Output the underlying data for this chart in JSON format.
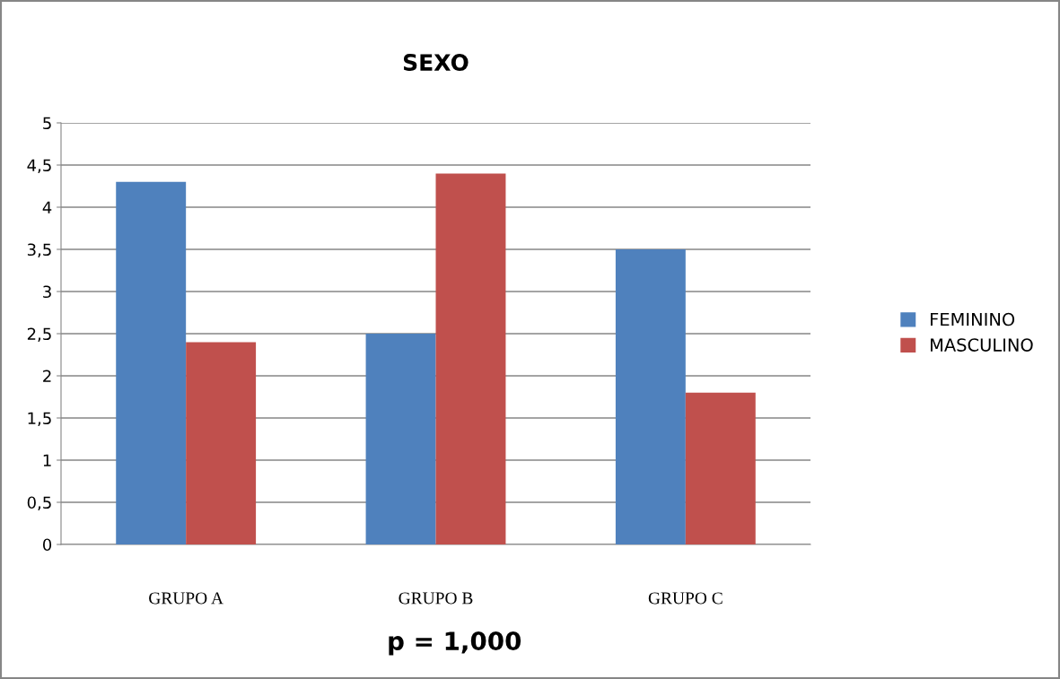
{
  "chart_data": {
    "type": "bar",
    "title": "SEXO",
    "categories": [
      "GRUPO A",
      "GRUPO B",
      "GRUPO C"
    ],
    "series": [
      {
        "name": "FEMININO",
        "color": "#4f81bd",
        "values": [
          4.3,
          2.5,
          3.5
        ]
      },
      {
        "name": "MASCULINO",
        "color": "#c0504d",
        "values": [
          2.4,
          4.4,
          1.8
        ]
      }
    ],
    "ylim": [
      0,
      5
    ],
    "yticks": [
      0,
      {
        "value": 0.5,
        "label": "0,5"
      },
      1,
      {
        "value": 1.5,
        "label": "1,5"
      },
      2,
      {
        "value": 2.5,
        "label": "2,5"
      },
      3,
      {
        "value": 3.5,
        "label": "3,5"
      },
      4,
      {
        "value": 4.5,
        "label": "4,5"
      },
      5
    ],
    "grid": "y",
    "legend": "right",
    "annotations": [
      "p = 1,000"
    ]
  }
}
